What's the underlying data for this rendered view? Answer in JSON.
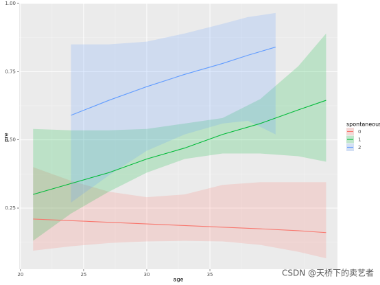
{
  "chart_data": {
    "type": "ribbon-line",
    "x_label": "age",
    "y_label": "pre",
    "legend_title": "spontaneous",
    "series": [
      {
        "name": "0",
        "color": "#F8766D",
        "x": [
          21,
          24,
          27,
          30,
          33,
          36,
          39,
          42,
          44.2
        ],
        "values": [
          0.21,
          0.204,
          0.198,
          0.192,
          0.186,
          0.18,
          0.174,
          0.167,
          0.16
        ],
        "lower": [
          0.094,
          0.11,
          0.122,
          0.128,
          0.13,
          0.128,
          0.115,
          0.09,
          0.066
        ],
        "upper": [
          0.4,
          0.35,
          0.31,
          0.29,
          0.3,
          0.335,
          0.345,
          0.345,
          0.345
        ]
      },
      {
        "name": "1",
        "color": "#00BA38",
        "x": [
          21,
          24,
          27,
          30,
          33,
          36,
          39,
          42,
          44.2
        ],
        "values": [
          0.3,
          0.34,
          0.38,
          0.43,
          0.47,
          0.52,
          0.56,
          0.61,
          0.645
        ],
        "lower": [
          0.13,
          0.23,
          0.31,
          0.38,
          0.43,
          0.45,
          0.45,
          0.44,
          0.42
        ],
        "upper": [
          0.54,
          0.535,
          0.535,
          0.54,
          0.56,
          0.58,
          0.65,
          0.77,
          0.89
        ]
      },
      {
        "name": "2",
        "color": "#619CFF",
        "x": [
          24,
          27,
          30,
          33,
          36,
          38,
          40.2
        ],
        "values": [
          0.59,
          0.645,
          0.695,
          0.74,
          0.78,
          0.81,
          0.84
        ],
        "lower": [
          0.27,
          0.37,
          0.46,
          0.52,
          0.56,
          0.57,
          0.52
        ],
        "upper": [
          0.85,
          0.85,
          0.86,
          0.89,
          0.925,
          0.95,
          0.965
        ]
      }
    ],
    "xlim": [
      19.9,
      45.1
    ],
    "xticks": [
      20,
      25,
      30,
      35
    ],
    "ylim": [
      0.026,
      1.0
    ],
    "yticks": [
      0.25,
      {
        "value": 0.5,
        "label": "0.50"
      },
      0.75,
      {
        "value": 1,
        "label": "1.00"
      }
    ],
    "grid": true,
    "watermark": "CSDN @天桥下的卖艺者"
  }
}
